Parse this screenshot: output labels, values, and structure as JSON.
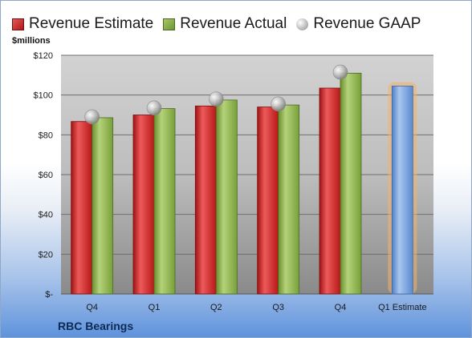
{
  "chart_data": {
    "type": "bar",
    "ylabel": "$millions",
    "ylim": [
      0,
      120
    ],
    "yticks": [
      0,
      20,
      40,
      60,
      80,
      100,
      120
    ],
    "ytick_labels": [
      "$-",
      "$20",
      "$40",
      "$60",
      "$80",
      "$100",
      "$120"
    ],
    "categories": [
      "Q4",
      "Q1",
      "Q2",
      "Q3",
      "Q4",
      "Q1 Estimate"
    ],
    "series": [
      {
        "name": "Revenue Estimate",
        "type": "bar",
        "color": "#c81e1e",
        "values": [
          86.7,
          90,
          94.5,
          94,
          103.5,
          null
        ]
      },
      {
        "name": "Revenue Actual",
        "type": "bar",
        "color": "#8bb04a",
        "values": [
          88.6,
          93.2,
          97.5,
          95,
          111,
          null
        ]
      },
      {
        "name": "Revenue GAAP",
        "type": "marker",
        "color": "#b0b0b0",
        "values": [
          89,
          93.5,
          98,
          95.5,
          111.5,
          null
        ]
      },
      {
        "name": "Q1 Estimate",
        "type": "bar",
        "color": "#6f9ad6",
        "highlight": "#f3b36a",
        "values": [
          null,
          null,
          null,
          null,
          null,
          104.5
        ]
      }
    ],
    "legend": "top",
    "grid": true
  },
  "company": "RBC Bearings"
}
